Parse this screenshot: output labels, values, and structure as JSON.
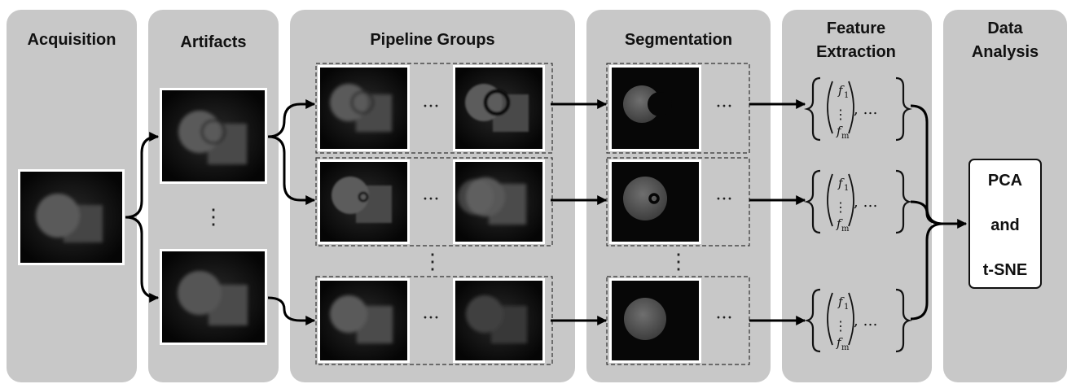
{
  "columns": {
    "acquisition": {
      "title": "Acquisition"
    },
    "artifacts": {
      "title": "Artifacts"
    },
    "pipeline_groups": {
      "title": "Pipeline Groups"
    },
    "segmentation": {
      "title": "Segmentation"
    },
    "feature_extraction": {
      "title_line1": "Feature",
      "title_line2": "Extraction"
    },
    "data_analysis": {
      "title_line1": "Data",
      "title_line2": "Analysis"
    }
  },
  "analysis_box": {
    "line1": "PCA",
    "line2": "and",
    "line3": "t-SNE"
  },
  "feature_vector": {
    "first": "f",
    "first_sub": "1",
    "last": "f",
    "last_sub": "m",
    "trailing": ", …"
  },
  "ellipsis_h": "···",
  "ellipsis_v": "⋮",
  "colors": {
    "panel": "#c8c8c8",
    "image_bg": "#0b0b0b",
    "arrow": "#000000"
  }
}
